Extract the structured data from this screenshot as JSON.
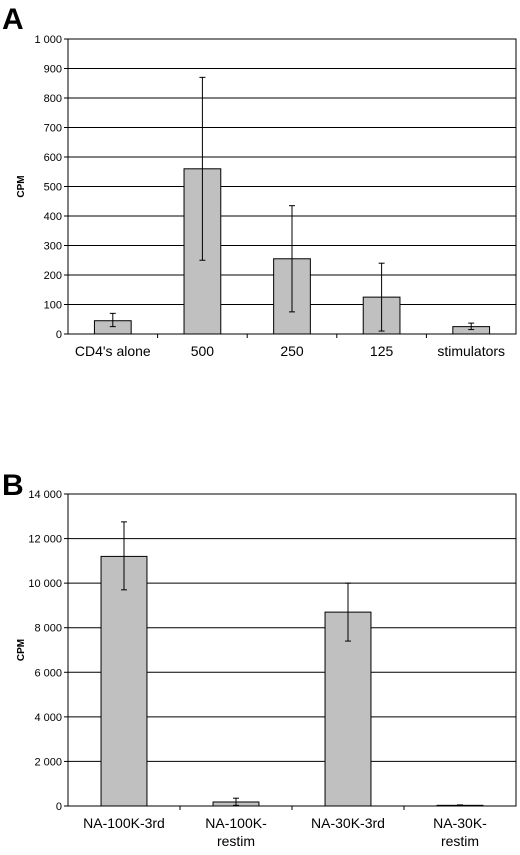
{
  "chart_data": [
    {
      "panel": "A",
      "type": "bar",
      "ylabel": "CPM",
      "ylim": [
        0,
        1000
      ],
      "yticks": [
        0,
        100,
        200,
        300,
        400,
        500,
        600,
        700,
        800,
        900,
        1000
      ],
      "ytick_labels": [
        "0",
        "100",
        "200",
        "300",
        "400",
        "500",
        "600",
        "700",
        "800",
        "900",
        "1 000"
      ],
      "grid": true,
      "categories": [
        [
          "CD4's alone"
        ],
        [
          "500"
        ],
        [
          "250"
        ],
        [
          "125"
        ],
        [
          "stimulators"
        ]
      ],
      "values": [
        45,
        560,
        255,
        125,
        25
      ],
      "error_low": [
        25,
        250,
        75,
        10,
        15
      ],
      "error_high": [
        70,
        870,
        435,
        240,
        37
      ],
      "bar_color": "#c0c0c0"
    },
    {
      "panel": "B",
      "type": "bar",
      "ylabel": "CPM",
      "ylim": [
        0,
        14000
      ],
      "yticks": [
        0,
        2000,
        4000,
        6000,
        8000,
        10000,
        12000,
        14000
      ],
      "ytick_labels": [
        "0",
        "2 000",
        "4 000",
        "6 000",
        "8 000",
        "10 000",
        "12 000",
        "14 000"
      ],
      "grid": true,
      "categories": [
        [
          "NA-100K-3rd"
        ],
        [
          "NA-100K-",
          "restim"
        ],
        [
          "NA-30K-3rd"
        ],
        [
          "NA-30K-",
          "restim"
        ]
      ],
      "values": [
        11200,
        180,
        8700,
        30
      ],
      "error_low": [
        9700,
        30,
        7400,
        10
      ],
      "error_high": [
        12750,
        350,
        10000,
        50
      ],
      "bar_color": "#c0c0c0"
    }
  ]
}
